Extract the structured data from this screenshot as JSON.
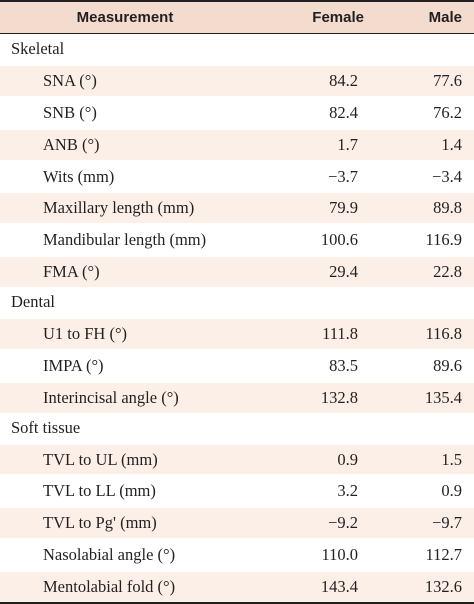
{
  "table": {
    "headers": {
      "measurement": "Measurement",
      "female": "Female",
      "male": "Male"
    },
    "sections": [
      {
        "title": "Skeletal",
        "rows": [
          {
            "name": "SNA (°)",
            "female": "84.2",
            "male": "77.6"
          },
          {
            "name": "SNB (°)",
            "female": "82.4",
            "male": "76.2"
          },
          {
            "name": "ANB (°)",
            "female": "1.7",
            "male": "1.4"
          },
          {
            "name": "Wits (mm)",
            "female": "−3.7",
            "male": "−3.4"
          },
          {
            "name": "Maxillary length (mm)",
            "female": "79.9",
            "male": "89.8"
          },
          {
            "name": "Mandibular length (mm)",
            "female": "100.6",
            "male": "116.9"
          },
          {
            "name": "FMA (°)",
            "female": "29.4",
            "male": "22.8"
          }
        ]
      },
      {
        "title": "Dental",
        "rows": [
          {
            "name": "U1 to FH (°)",
            "female": "111.8",
            "male": "116.8"
          },
          {
            "name": "IMPA (°)",
            "female": "83.5",
            "male": "89.6"
          },
          {
            "name": "Interincisal angle (°)",
            "female": "132.8",
            "male": "135.4"
          }
        ]
      },
      {
        "title": "Soft tissue",
        "rows": [
          {
            "name": "TVL to UL (mm)",
            "female": "0.9",
            "male": "1.5"
          },
          {
            "name": "TVL to LL (mm)",
            "female": "3.2",
            "male": "0.9"
          },
          {
            "name": "TVL to Pg' (mm)",
            "female": "−9.2",
            "male": "−9.7"
          },
          {
            "name": "Nasolabial angle (°)",
            "female": "110.0",
            "male": "112.7"
          },
          {
            "name": "Mentolabial fold (°)",
            "female": "143.4",
            "male": "132.6"
          }
        ]
      }
    ],
    "colors": {
      "header_bg": "#f3dccd",
      "shaded_row_bg": "#fcefe7",
      "rule": "#231f20"
    }
  }
}
